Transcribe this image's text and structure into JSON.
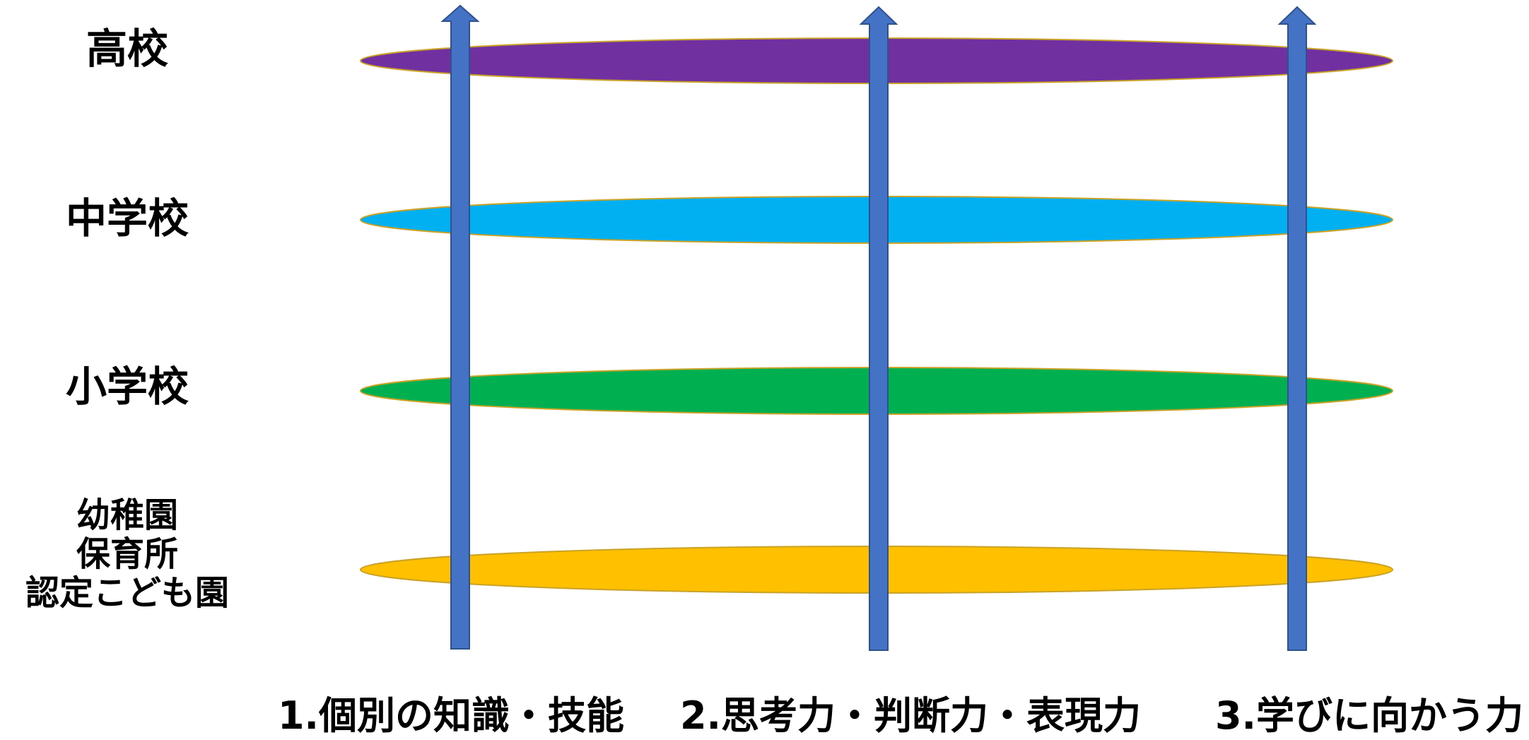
{
  "stages": [
    {
      "id": "high-school",
      "lines": [
        "高校"
      ],
      "color": "#7030A0"
    },
    {
      "id": "junior-high",
      "lines": [
        "中学校"
      ],
      "color": "#00B0F0"
    },
    {
      "id": "elementary",
      "lines": [
        "小学校"
      ],
      "color": "#00B050"
    },
    {
      "id": "early-childhood",
      "lines": [
        "幼稚園",
        "保育所",
        "認定こども園"
      ],
      "color": "#FFC000"
    }
  ],
  "abilities": [
    {
      "id": "ability-1",
      "label": "1.個別の知識・技能"
    },
    {
      "id": "ability-2",
      "label": "2.思考力・判断力・表現力"
    },
    {
      "id": "ability-3",
      "label": "3.学びに向かう力"
    }
  ],
  "colors": {
    "arrow_fill": "#4472C4",
    "arrow_stroke": "#2F528F",
    "ellipse_stroke": "#C9A227",
    "text": "#000000"
  }
}
